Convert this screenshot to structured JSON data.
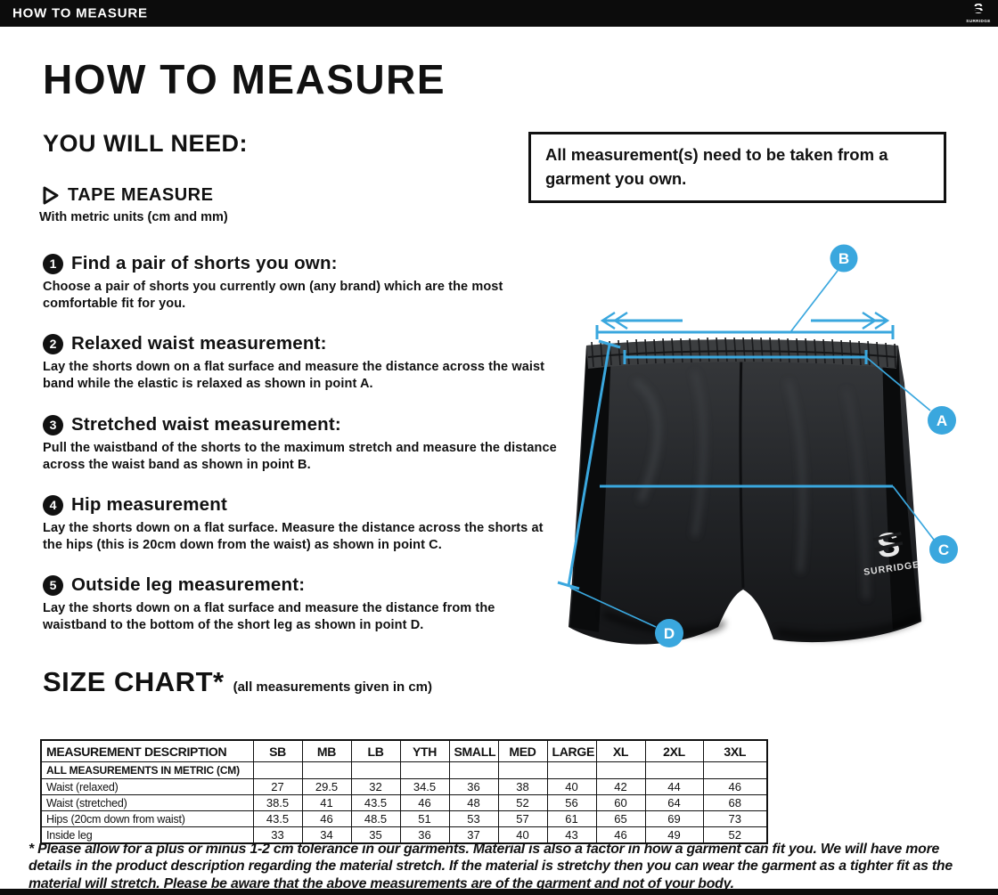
{
  "topbar": {
    "title": "HOW TO MEASURE"
  },
  "brand": {
    "name": "SURRIDGE",
    "initial": "S"
  },
  "header": {
    "title": "HOW TO MEASURE",
    "you_will_need": "YOU WILL NEED:"
  },
  "tools": {
    "tape_name": "TAPE MEASURE",
    "tape_desc": "With metric units (cm and mm)"
  },
  "notice": {
    "text": "All measurement(s) need to be taken from a garment you own."
  },
  "steps": [
    {
      "num": "1",
      "title": "Find a pair of shorts you own:",
      "body": "Choose a pair of shorts you currently own (any brand) which are the most comfortable fit for you."
    },
    {
      "num": "2",
      "title": "Relaxed waist measurement:",
      "body": "Lay the shorts down on a flat surface and measure the distance across the waist band while the elastic is relaxed as shown in point A."
    },
    {
      "num": "3",
      "title": "Stretched waist measurement:",
      "body": "Pull the waistband of the shorts to the maximum stretch and measure the distance across the waist band as shown in point B."
    },
    {
      "num": "4",
      "title": "Hip measurement",
      "body": "Lay the shorts down on a flat surface. Measure the distance across the shorts at the hips (this is 20cm down from the waist)  as shown in point C."
    },
    {
      "num": "5",
      "title": "Outside leg measurement:",
      "body": "Lay the shorts down on a flat surface and measure the distance from the waistband to the bottom of the short leg as shown in point D."
    }
  ],
  "diagram": {
    "labels": [
      "A",
      "B",
      "C",
      "D"
    ]
  },
  "size_chart": {
    "title": "SIZE CHART*",
    "subtitle": "(all measurements given in cm)",
    "columns": [
      "MEASUREMENT DESCRIPTION",
      "SB",
      "MB",
      "LB",
      "YTH",
      "SMALL",
      "MED",
      "LARGE",
      "XL",
      "2XL",
      "3XL"
    ],
    "metric_row": "ALL MEASUREMENTS IN METRIC (CM)",
    "rows": [
      {
        "label": "Waist (relaxed)",
        "values": [
          "27",
          "29.5",
          "32",
          "34.5",
          "36",
          "38",
          "40",
          "42",
          "44",
          "46"
        ]
      },
      {
        "label": "Waist (stretched)",
        "values": [
          "38.5",
          "41",
          "43.5",
          "46",
          "48",
          "52",
          "56",
          "60",
          "64",
          "68"
        ]
      },
      {
        "label": "Hips (20cm down from waist)",
        "values": [
          "43.5",
          "46",
          "48.5",
          "51",
          "53",
          "57",
          "61",
          "65",
          "69",
          "73"
        ]
      },
      {
        "label": "Inside leg",
        "values": [
          "33",
          "34",
          "35",
          "36",
          "37",
          "40",
          "43",
          "46",
          "49",
          "52"
        ]
      }
    ]
  },
  "footnote": {
    "text": "* Please allow for a plus or minus 1-2 cm tolerance in our garments. Material is also a factor in how a garment can fit you. We will have more details in the product description regarding the material stretch.  If the material is stretchy then you can wear the garment as a tighter fit as the material will stretch.  Please be aware that the above measurements are of the garment and not of your body."
  },
  "colors": {
    "accent": "#3aa7de",
    "ink": "#111111"
  }
}
